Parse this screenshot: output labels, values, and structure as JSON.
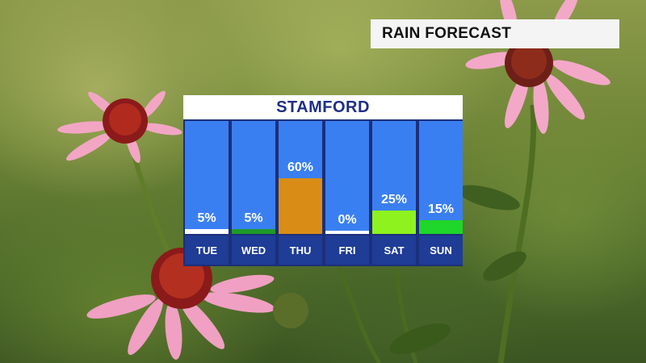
{
  "title": "RAIN FORECAST",
  "location": "STAMFORD",
  "chart_data": {
    "type": "bar",
    "categories": [
      "TUE",
      "WED",
      "THU",
      "FRI",
      "SAT",
      "SUN"
    ],
    "values": [
      5,
      5,
      60,
      0,
      25,
      15
    ],
    "value_labels": [
      "5%",
      "5%",
      "60%",
      "0%",
      "25%",
      "15%"
    ],
    "bar_colors": [
      "#ffffff",
      "#1e9a2a",
      "#d98d16",
      "#ffffff",
      "#8ef21e",
      "#1fd62a"
    ],
    "ylim": [
      0,
      100
    ],
    "unit": "%"
  },
  "colors": {
    "column_background": "#3a7ff2",
    "day_label_background": "#1f3c96",
    "header_text": "#1d2f86"
  }
}
